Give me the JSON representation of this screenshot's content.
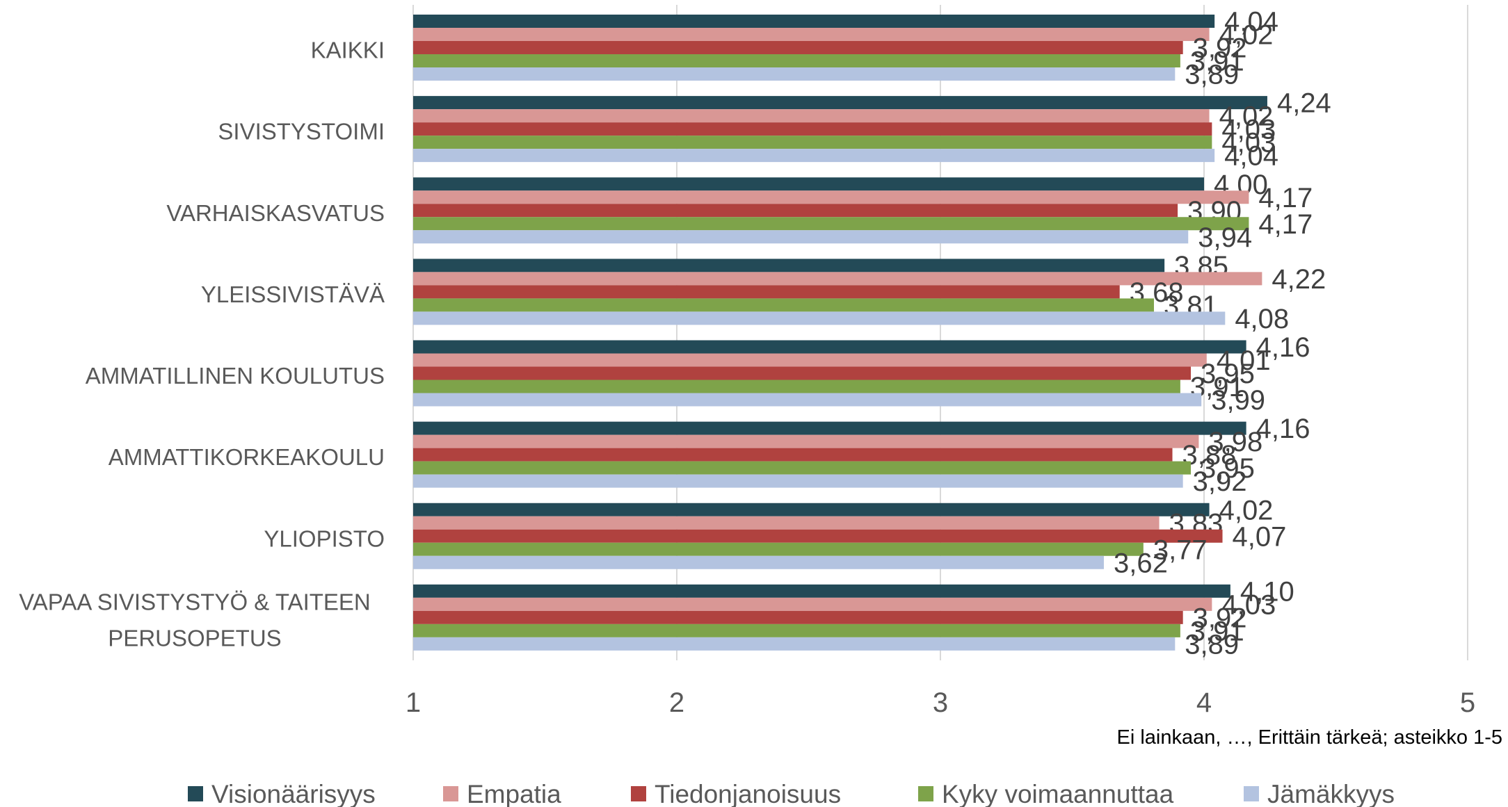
{
  "chart_data": {
    "type": "bar",
    "orientation": "horizontal",
    "title": "",
    "xlabel": "Ei lainkaan, …, Erittäin tärkeä; asteikko 1-5",
    "ylabel": "",
    "xlim": [
      1,
      5
    ],
    "ticks": [
      "1",
      "2",
      "3",
      "4",
      "5"
    ],
    "grid": true,
    "legend_position": "bottom",
    "categories": [
      [
        "KAIKKI"
      ],
      [
        "SIVISTYSTOIMI"
      ],
      [
        "VARHAISKASVATUS"
      ],
      [
        "YLEISSIVISTÄVÄ"
      ],
      [
        "AMMATILLINEN KOULUTUS"
      ],
      [
        "AMMATTIKORKEAKOULU"
      ],
      [
        "YLIOPISTO"
      ],
      [
        "VAPAA SIVISTYSTYÖ & TAITEEN",
        "PERUSOPETUS"
      ]
    ],
    "series": [
      {
        "name": "Visionäärisyys",
        "color": "#234a57",
        "values": [
          4.04,
          4.24,
          4.0,
          3.85,
          4.16,
          4.16,
          4.02,
          4.1
        ],
        "labels": [
          "4,04",
          "4,24",
          "4,00",
          "3,85",
          "4,16",
          "4,16",
          "4,02",
          "4,10"
        ]
      },
      {
        "name": "Empatia",
        "color": "#d99795",
        "values": [
          4.02,
          4.02,
          4.17,
          4.22,
          4.01,
          3.98,
          3.83,
          4.03
        ],
        "labels": [
          "4,02",
          "4,02",
          "4,17",
          "4,22",
          "4,01",
          "3,98",
          "3,83",
          "4,03"
        ]
      },
      {
        "name": "Tiedonjanoisuus",
        "color": "#b0423f",
        "values": [
          3.92,
          4.03,
          3.9,
          3.68,
          3.95,
          3.88,
          4.07,
          3.92
        ],
        "labels": [
          "3,92",
          "4,03",
          "3,90",
          "3,68",
          "3,95",
          "3,88",
          "4,07",
          "3,92"
        ]
      },
      {
        "name": "Kyky voimaannuttaa",
        "color": "#7ea34a",
        "values": [
          3.91,
          4.03,
          4.17,
          3.81,
          3.91,
          3.95,
          3.77,
          3.91
        ],
        "labels": [
          "3,91",
          "4,03",
          "4,17",
          "3,81",
          "3,91",
          "3,95",
          "3,77",
          "3,91"
        ]
      },
      {
        "name": "Jämäkkyys",
        "color": "#b3c3e0",
        "values": [
          3.89,
          4.04,
          3.94,
          4.08,
          3.99,
          3.92,
          3.62,
          3.89
        ],
        "labels": [
          "3,89",
          "4,04",
          "3,94",
          "4,08",
          "3,99",
          "3,92",
          "3,62",
          "3,89"
        ]
      }
    ]
  }
}
